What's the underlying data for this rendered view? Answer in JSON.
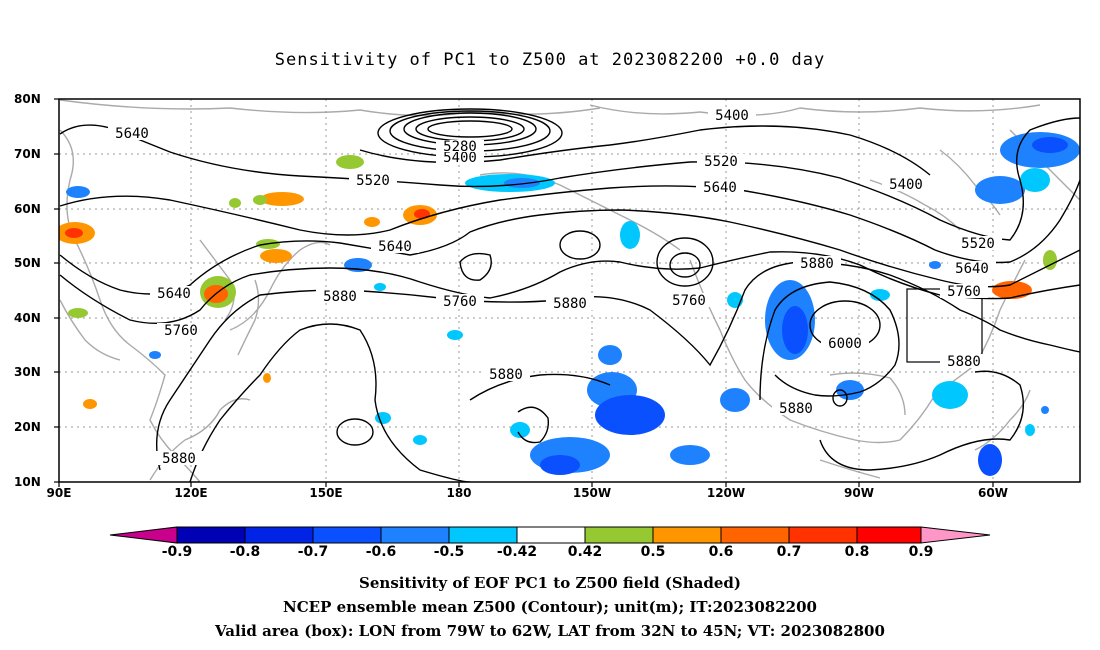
{
  "title": "Sensitivity of PC1 to Z500 at 2023082200 +0.0 day",
  "map": {
    "lat_labels": [
      "80N",
      "70N",
      "60N",
      "50N",
      "40N",
      "30N",
      "20N",
      "10N"
    ],
    "lon_labels": [
      "90E",
      "120E",
      "150E",
      "180",
      "150W",
      "120W",
      "90W",
      "60W"
    ],
    "contour_labels": [
      "5640",
      "5520",
      "5400",
      "5280",
      "5400",
      "5400",
      "5520",
      "5640",
      "5400",
      "5520",
      "5640",
      "5640",
      "5760",
      "5880",
      "5760",
      "5880",
      "5760",
      "5880",
      "5760",
      "5880",
      "5640",
      "5760",
      "6000",
      "5880",
      "5880",
      "5880",
      "5880"
    ]
  },
  "colorbar": {
    "labels": [
      "-0.9",
      "-0.8",
      "-0.7",
      "-0.6",
      "-0.5",
      "-0.42",
      "0.42",
      "0.5",
      "0.6",
      "0.7",
      "0.8",
      "0.9"
    ],
    "colors": [
      "#c8008c",
      "#0000b4",
      "#0023e6",
      "#0a50ff",
      "#1e82ff",
      "#00c8ff",
      "#ffffff",
      "#96c832",
      "#ff9600",
      "#ff6400",
      "#ff3200",
      "#ff0000",
      "#ff96c8"
    ]
  },
  "caption": {
    "line1": "Sensitivity of EOF PC1 to Z500 field (Shaded)",
    "line2": "NCEP ensemble mean Z500 (Contour); unit(m); IT:2023082200",
    "line3": "Valid area (box): LON from 79W to 62W, LAT from 32N to 45N; VT: 2023082800"
  }
}
